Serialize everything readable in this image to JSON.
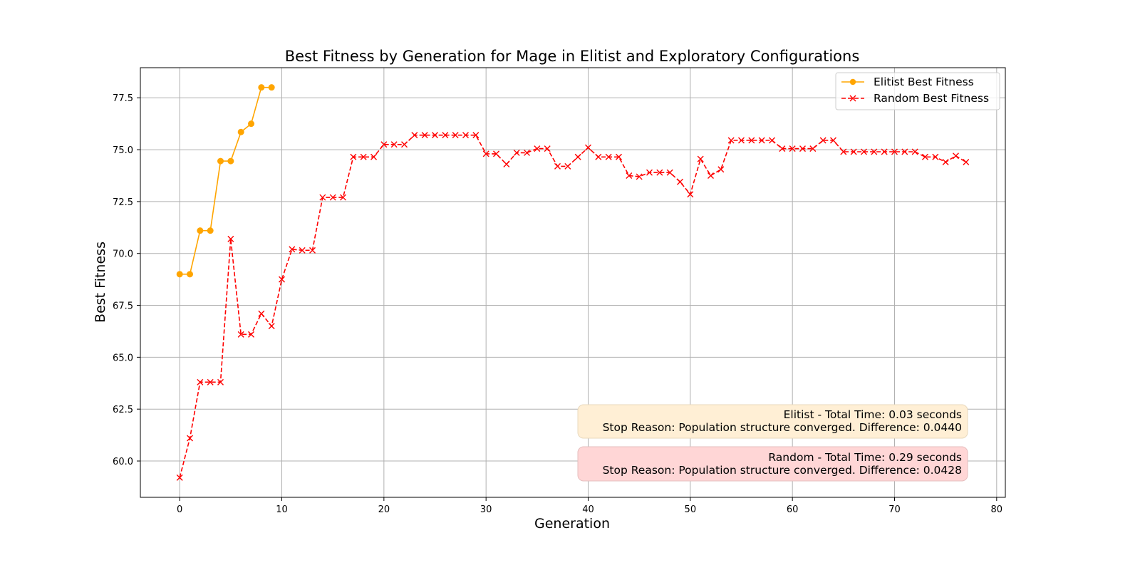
{
  "chart_data": {
    "type": "line",
    "title": "Best Fitness by Generation for Mage in Elitist and Exploratory Configurations",
    "xlabel": "Generation",
    "ylabel": "Best Fitness",
    "xlim": [
      -3.85,
      80.85
    ],
    "ylim": [
      58.25,
      78.95
    ],
    "xticks": [
      0,
      10,
      20,
      30,
      40,
      50,
      60,
      70,
      80
    ],
    "xtick_labels": [
      "0",
      "10",
      "20",
      "30",
      "40",
      "50",
      "60",
      "70",
      "80"
    ],
    "yticks": [
      60.0,
      62.5,
      65.0,
      67.5,
      70.0,
      72.5,
      75.0,
      77.5
    ],
    "ytick_labels": [
      "60.0",
      "62.5",
      "65.0",
      "67.5",
      "70.0",
      "72.5",
      "75.0",
      "77.5"
    ],
    "grid": true,
    "legend_position": "top-right",
    "series": [
      {
        "name": "Elitist Best Fitness",
        "color": "#FFA500",
        "marker": "circle",
        "line_style": "solid",
        "x": [
          0,
          1,
          2,
          3,
          4,
          5,
          6,
          7,
          8,
          9
        ],
        "y": [
          69.0,
          69.0,
          71.1,
          71.1,
          74.45,
          74.45,
          75.85,
          76.25,
          78.0,
          78.0
        ]
      },
      {
        "name": "Random Best Fitness",
        "color": "#FF0000",
        "marker": "x",
        "line_style": "dashed",
        "x": [
          0,
          1,
          2,
          3,
          4,
          5,
          6,
          7,
          8,
          9,
          10,
          11,
          12,
          13,
          14,
          15,
          16,
          17,
          18,
          19,
          20,
          21,
          22,
          23,
          24,
          25,
          26,
          27,
          28,
          29,
          30,
          31,
          32,
          33,
          34,
          35,
          36,
          37,
          38,
          39,
          40,
          41,
          42,
          43,
          44,
          45,
          46,
          47,
          48,
          49,
          50,
          51,
          52,
          53,
          54,
          55,
          56,
          57,
          58,
          59,
          60,
          61,
          62,
          63,
          64,
          65,
          66,
          67,
          68,
          69,
          70,
          71,
          72,
          73,
          74,
          75,
          76,
          77
        ],
        "y": [
          59.2,
          61.1,
          63.8,
          63.8,
          63.8,
          70.7,
          66.1,
          66.1,
          67.1,
          66.5,
          68.75,
          70.2,
          70.15,
          70.15,
          72.7,
          72.7,
          72.7,
          74.65,
          74.65,
          74.65,
          75.25,
          75.25,
          75.25,
          75.7,
          75.7,
          75.7,
          75.7,
          75.7,
          75.7,
          75.7,
          74.8,
          74.8,
          74.3,
          74.85,
          74.85,
          75.05,
          75.05,
          74.2,
          74.2,
          74.65,
          75.1,
          74.65,
          74.65,
          74.65,
          73.75,
          73.7,
          73.9,
          73.9,
          73.9,
          73.45,
          72.85,
          74.55,
          73.75,
          74.05,
          75.45,
          75.45,
          75.45,
          75.45,
          75.45,
          75.05,
          75.05,
          75.05,
          75.05,
          75.45,
          75.45,
          74.9,
          74.9,
          74.9,
          74.9,
          74.9,
          74.9,
          74.9,
          74.9,
          74.65,
          74.65,
          74.4,
          74.7,
          74.4
        ]
      }
    ],
    "annotations": [
      {
        "key": "elitist",
        "line1": "Elitist - Total Time: 0.03 seconds",
        "line2": "Stop Reason: Population structure converged. Difference: 0.0440",
        "fill": "#FFEFD5",
        "stroke": "#E8D8BC"
      },
      {
        "key": "random",
        "line1": "Random - Total Time: 0.29 seconds",
        "line2": "Stop Reason: Population structure converged. Difference: 0.0428",
        "fill": "#FFD6D6",
        "stroke": "#E6BEBE"
      }
    ]
  }
}
